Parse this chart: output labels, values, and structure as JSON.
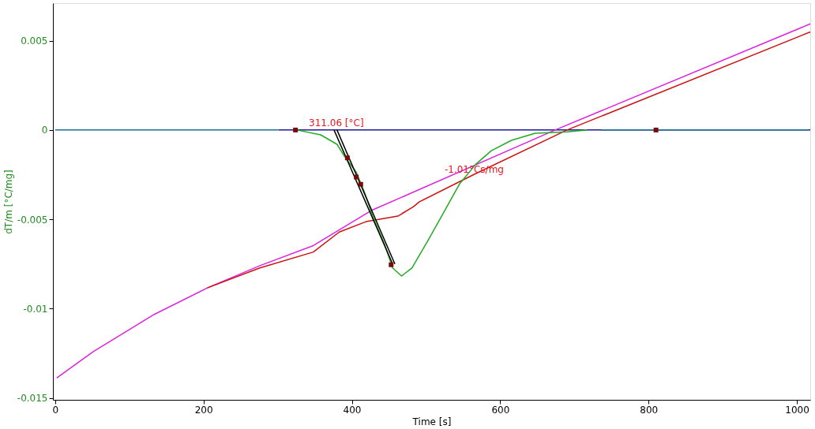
{
  "chart_data": {
    "type": "line",
    "xlabel": "Time [s]",
    "ylabel": "dT/m  [°C/mg]",
    "xlim": [
      -3,
      1018
    ],
    "ylim": [
      -0.0151,
      0.0071
    ],
    "xticks": [
      0,
      200,
      400,
      600,
      800,
      1000
    ],
    "yticks": [
      0.005,
      0,
      -0.005,
      -0.01,
      -0.015
    ],
    "grid": false,
    "marker": "none",
    "line_style": "solid",
    "series": [
      {
        "color": "#1a1a99",
        "x": [
          301,
          1018
        ],
        "values": [
          0,
          0
        ]
      },
      {
        "color": "#1a6e8e",
        "x": [
          0,
          301,
          518,
          736,
          1015
        ],
        "values": [
          0,
          0,
          null,
          0,
          0
        ]
      },
      {
        "color": "#dd22dd",
        "x": [
          2,
          51,
          134,
          205,
          276,
          348,
          426,
          674,
          1018
        ],
        "values": [
          -0.01388,
          -0.01241,
          -0.01031,
          -0.00884,
          -0.00759,
          -0.00647,
          -0.00451,
          0,
          0.00594
        ]
      },
      {
        "color": "#cc1111",
        "x": [
          205,
          276,
          348,
          383,
          419,
          462,
          483,
          491,
          564,
          690,
          1018
        ],
        "values": [
          -0.00884,
          -0.00772,
          -0.00683,
          -0.00571,
          -0.00513,
          -0.00482,
          -0.00429,
          -0.00402,
          -0.0025,
          0,
          0.00549
        ]
      },
      {
        "color": "#22aa22",
        "x": [
          326,
          358,
          380,
          390,
          406,
          417,
          428,
          444,
          455,
          467,
          481,
          503,
          524,
          545,
          567,
          588,
          615,
          647,
          690,
          717
        ],
        "values": [
          0,
          -0.00027,
          -0.0008,
          -0.00147,
          -0.00237,
          -0.00348,
          -0.00482,
          -0.00638,
          -0.00772,
          -0.00817,
          -0.00772,
          -0.00616,
          -0.0046,
          -0.00303,
          -0.00192,
          -0.00116,
          -0.00058,
          -0.00018,
          -0.0001,
          0
        ]
      },
      {
        "color": "#000000",
        "x": [
          376,
          455
        ],
        "values": [
          0,
          -0.0075
        ]
      },
      {
        "color": "#000000",
        "x": [
          380,
          458
        ],
        "values": [
          0,
          -0.0075
        ]
      },
      {
        "type": "scatter",
        "marker": "square",
        "color": "#7a0a0a",
        "x": [
          324,
          394,
          406,
          412,
          453,
          810
        ],
        "values": [
          0,
          -0.00156,
          -0.00263,
          -0.00304,
          -0.00754,
          0
        ]
      }
    ],
    "annotations": [
      {
        "text": "311.06 [°C]",
        "x": 342,
        "y": 0
      },
      {
        "text": "-1.01°Cs/mg",
        "x": 525,
        "y": -0.0026
      }
    ]
  }
}
